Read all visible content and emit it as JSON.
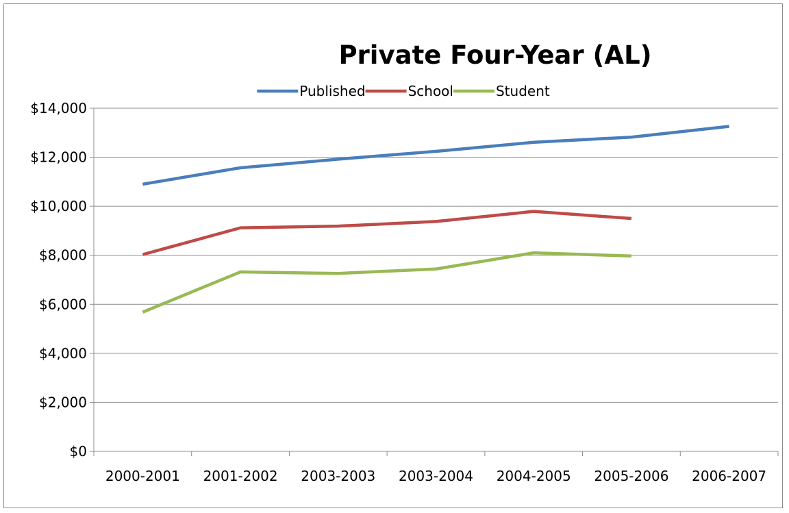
{
  "chart_data": {
    "type": "line",
    "title": "Private Four-Year (AL)",
    "xlabel": "",
    "ylabel": "",
    "categories": [
      "2000-2001",
      "2001-2002",
      "2003-2003",
      "2003-2004",
      "2004-2005",
      "2005-2006",
      "2006-2007"
    ],
    "series": [
      {
        "name": "Published",
        "color": "#4a7ebb",
        "values": [
          10900,
          11570,
          11920,
          12240,
          12610,
          12820,
          13260
        ]
      },
      {
        "name": "School",
        "color": "#be4b48",
        "values": [
          8030,
          9120,
          9190,
          9380,
          9790,
          9500,
          null
        ]
      },
      {
        "name": "Student",
        "color": "#98b954",
        "values": [
          5680,
          7320,
          7260,
          7440,
          8100,
          7970,
          null
        ]
      }
    ],
    "ylim": [
      0,
      14000
    ],
    "yticks": [
      0,
      2000,
      4000,
      6000,
      8000,
      10000,
      12000,
      14000
    ],
    "ytick_labels": [
      "$0",
      "$2,000",
      "$4,000",
      "$6,000",
      "$8,000",
      "$10,000",
      "$12,000",
      "$14,000"
    ],
    "grid": true,
    "legend_position": "top"
  }
}
